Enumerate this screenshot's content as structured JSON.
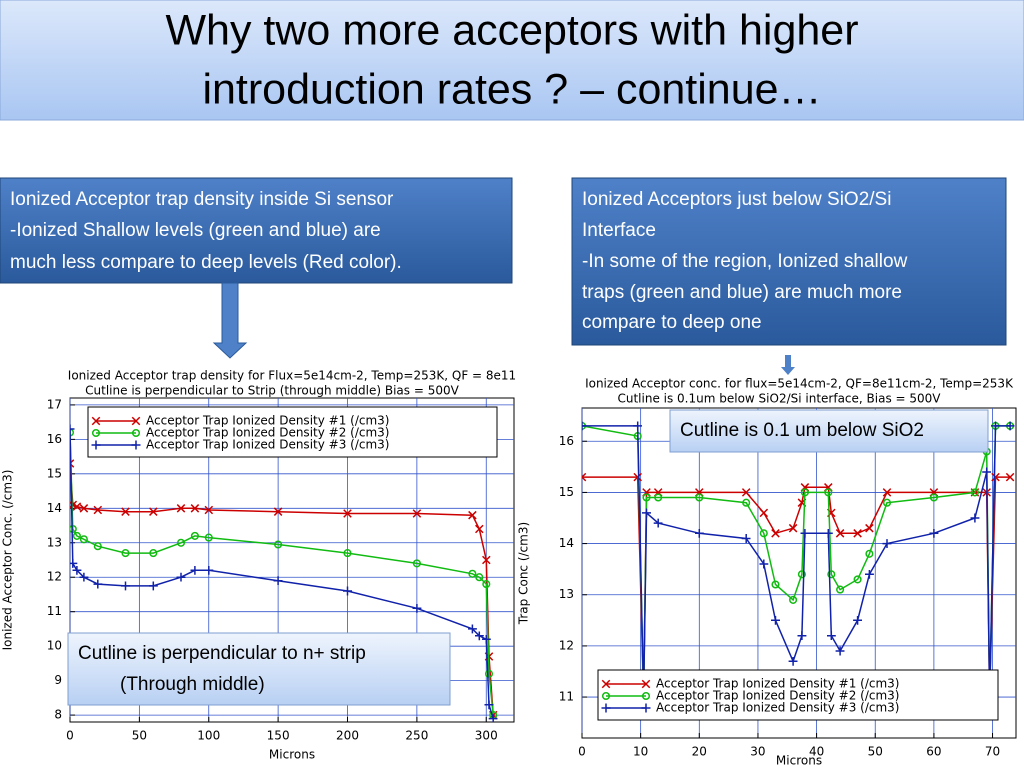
{
  "slide_title": [
    "Why two more acceptors with higher",
    "introduction rates ? – continue…"
  ],
  "left_box": [
    "Ionized Acceptor trap density inside Si sensor",
    "-Ionized Shallow levels (green and blue) are",
    "much less   compare to deep levels (Red color)."
  ],
  "right_box": [
    "Ionized Acceptors just below SiO2/Si",
    "Interface",
    "-In some of the region, Ionized shallow",
    " traps (green and blue) are much more",
    "compare to deep one"
  ],
  "chart_data": [
    {
      "type": "line",
      "title": [
        "Ionized Acceptor trap density for Flux=5e14cm-2, Temp=253K, QF = 8e11",
        "Cutline is perpendicular to Strip (through middle) Bias = 500V"
      ],
      "x_label": "Microns",
      "y_label": "Ionized Acceptor Conc. (/cm3)",
      "annotation": [
        "Cutline is perpendicular to n+ strip",
        "(Through middle)"
      ],
      "legend": "upper left",
      "grid": true,
      "xlim": [
        0,
        320
      ],
      "ylim": [
        7.8,
        17.2
      ],
      "xticks": [
        0,
        50,
        100,
        150,
        200,
        250,
        300
      ],
      "yticks": [
        8,
        9,
        10,
        11,
        12,
        13,
        14,
        15,
        16,
        17
      ],
      "x": [
        0,
        2,
        5,
        10,
        20,
        40,
        60,
        80,
        90,
        100,
        150,
        200,
        250,
        290,
        295,
        300,
        302,
        305
      ],
      "series": [
        {
          "name": "Acceptor Trap Ionized Density #1 (/cm3)",
          "color": "#cc0000",
          "marker": "x",
          "values": [
            15.3,
            14.1,
            14.05,
            14.0,
            13.95,
            13.9,
            13.9,
            14.0,
            14.0,
            13.95,
            13.9,
            13.85,
            13.85,
            13.8,
            13.4,
            12.5,
            9.7,
            8
          ]
        },
        {
          "name": "Acceptor Trap Ionized Density #2 (/cm3)",
          "color": "#11bb11",
          "marker": "o",
          "values": [
            16.2,
            13.4,
            13.2,
            13.1,
            12.9,
            12.7,
            12.7,
            13.0,
            13.2,
            13.15,
            12.95,
            12.7,
            12.4,
            12.1,
            12.0,
            11.8,
            9.2,
            8
          ]
        },
        {
          "name": "Acceptor Trap Ionized Density #3 (/cm3)",
          "color": "#1122aa",
          "marker": "+",
          "values": [
            16.3,
            12.4,
            12.2,
            12.0,
            11.8,
            11.75,
            11.75,
            12.0,
            12.2,
            12.2,
            11.9,
            11.6,
            11.1,
            10.5,
            10.3,
            10.2,
            8.3,
            7.9
          ]
        }
      ]
    },
    {
      "type": "line",
      "title": [
        "Ionized Acceptor conc. for flux=5e14cm-2, QF=8e11cm-2, Temp=253K",
        "Cutline is 0.1um below SiO2/Si interface, Bias = 500V"
      ],
      "x_label": "Microns",
      "y_label": "Trap Conc (/cm3)",
      "annotation": [
        "Cutline is 0.1 um below SiO2"
      ],
      "legend": "lower left",
      "grid": true,
      "xlim": [
        0,
        74
      ],
      "ylim": [
        10.2,
        16.65
      ],
      "xticks": [
        0,
        10,
        20,
        30,
        40,
        50,
        60,
        70
      ],
      "yticks": [
        11,
        12,
        13,
        14,
        15,
        16
      ],
      "x": [
        0,
        9.5,
        10.5,
        11,
        13,
        20,
        28,
        31,
        33,
        36,
        37.5,
        38,
        42,
        42.5,
        44,
        47,
        49,
        52,
        60,
        67,
        69,
        69.5,
        70.5,
        73
      ],
      "series": [
        {
          "name": "Acceptor Trap Ionized Density #1 (/cm3)",
          "color": "#cc0000",
          "marker": "x",
          "values": [
            15.3,
            15.3,
            11,
            15.0,
            15.0,
            15.0,
            15.0,
            14.6,
            14.2,
            14.3,
            14.8,
            15.1,
            15.1,
            14.6,
            14.2,
            14.2,
            14.3,
            15.0,
            15.0,
            15.0,
            15.0,
            11,
            15.3,
            15.3
          ]
        },
        {
          "name": "Acceptor Trap Ionized Density #2 (/cm3)",
          "color": "#11bb11",
          "marker": "o",
          "values": [
            16.3,
            16.1,
            11,
            14.9,
            14.9,
            14.9,
            14.8,
            14.2,
            13.2,
            12.9,
            13.4,
            15.0,
            15.0,
            13.4,
            13.1,
            13.3,
            13.8,
            14.8,
            14.9,
            15.0,
            15.8,
            11,
            16.3,
            16.3
          ]
        },
        {
          "name": "Acceptor Trap Ionized Density #3 (/cm3)",
          "color": "#1122aa",
          "marker": "+",
          "values": [
            16.3,
            16.3,
            11,
            14.6,
            14.4,
            14.2,
            14.1,
            13.6,
            12.5,
            11.7,
            12.2,
            14.2,
            14.2,
            12.2,
            11.9,
            12.5,
            13.4,
            14.0,
            14.2,
            14.5,
            15.4,
            11,
            16.3,
            16.3
          ]
        }
      ]
    }
  ]
}
